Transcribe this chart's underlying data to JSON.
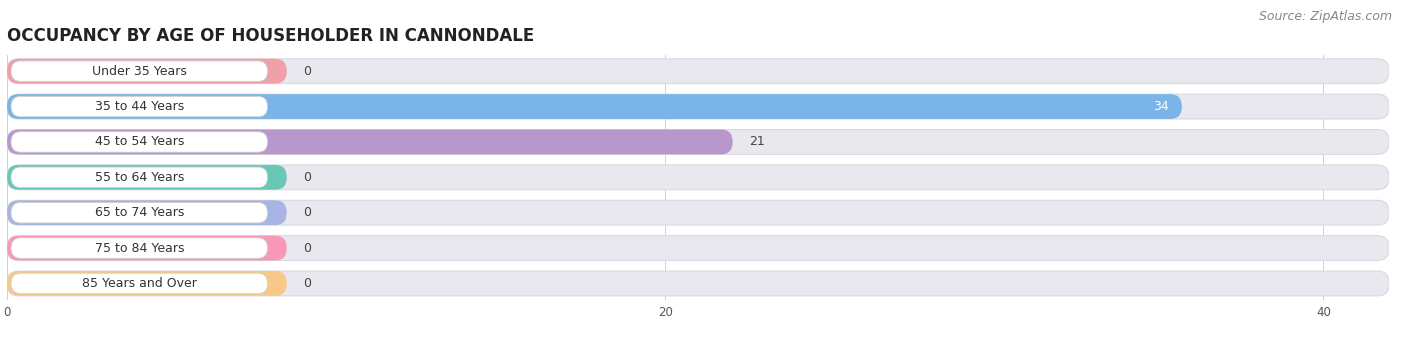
{
  "title": "OCCUPANCY BY AGE OF HOUSEHOLDER IN CANNONDALE",
  "source": "Source: ZipAtlas.com",
  "categories": [
    "Under 35 Years",
    "35 to 44 Years",
    "45 to 54 Years",
    "55 to 64 Years",
    "65 to 74 Years",
    "75 to 84 Years",
    "85 Years and Over"
  ],
  "values": [
    0,
    34,
    21,
    0,
    0,
    0,
    0
  ],
  "bar_colors": [
    "#f0a0a8",
    "#7ab4e8",
    "#b898cc",
    "#68c8b8",
    "#a8b4e4",
    "#f898b8",
    "#f8c888"
  ],
  "row_bg_color": "#e8e8ee",
  "row_bg_edge_color": "#d8d8e0",
  "xlim_max": 42,
  "xticks": [
    0,
    20,
    40
  ],
  "title_fontsize": 12,
  "source_fontsize": 9,
  "label_fontsize": 9,
  "value_fontsize": 9,
  "figsize": [
    14.06,
    3.41
  ],
  "dpi": 100
}
